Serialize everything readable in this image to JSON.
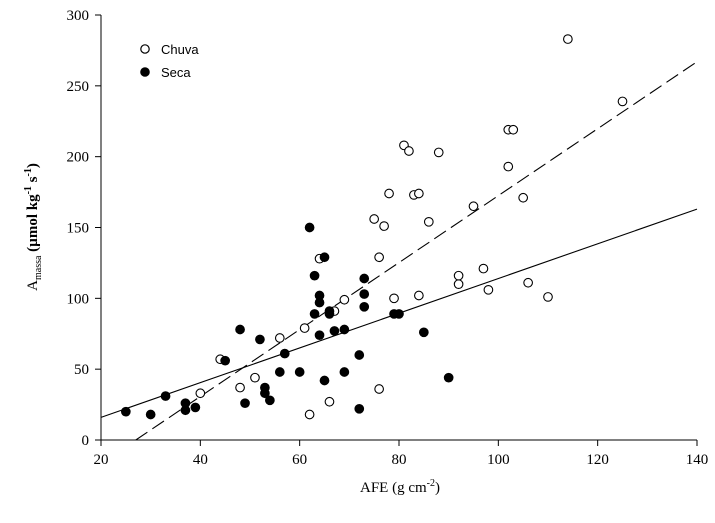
{
  "chart_data": {
    "type": "scatter",
    "xlabel_text": "AFE (g cm",
    "xlabel_sup": "-2",
    "xlabel_end": ")",
    "ylabel_main": "A",
    "ylabel_sub": "massa",
    "ylabel_rest": " (µmol kg",
    "ylabel_sup1": "-1",
    "ylabel_mid": " s",
    "ylabel_sup2": "-1",
    "ylabel_end": ")",
    "xlim": [
      20,
      140
    ],
    "ylim": [
      0,
      300
    ],
    "xticks": [
      "20",
      "40",
      "60",
      "80",
      "100",
      "120",
      "140"
    ],
    "yticks": [
      "0",
      "50",
      "100",
      "150",
      "200",
      "250",
      "300"
    ],
    "legend_position": "top-left",
    "series": [
      {
        "name": "Chuva",
        "marker": "open-circle",
        "color": "#000000",
        "fit_line": {
          "style": "dashed",
          "x": [
            27,
            140
          ],
          "y": [
            0,
            267
          ]
        },
        "points": [
          [
            40,
            33
          ],
          [
            44,
            57
          ],
          [
            48,
            37
          ],
          [
            51,
            44
          ],
          [
            56,
            72
          ],
          [
            61,
            79
          ],
          [
            62,
            18
          ],
          [
            64,
            128
          ],
          [
            66,
            27
          ],
          [
            67,
            91
          ],
          [
            69,
            99
          ],
          [
            75,
            156
          ],
          [
            76,
            36
          ],
          [
            76,
            129
          ],
          [
            77,
            151
          ],
          [
            78,
            174
          ],
          [
            79,
            100
          ],
          [
            81,
            208
          ],
          [
            82,
            204
          ],
          [
            83,
            173
          ],
          [
            84,
            174
          ],
          [
            84,
            102
          ],
          [
            86,
            154
          ],
          [
            88,
            203
          ],
          [
            92,
            110
          ],
          [
            92,
            116
          ],
          [
            95,
            165
          ],
          [
            97,
            121
          ],
          [
            98,
            106
          ],
          [
            102,
            219
          ],
          [
            102,
            193
          ],
          [
            103,
            219
          ],
          [
            105,
            171
          ],
          [
            106,
            111
          ],
          [
            110,
            101
          ],
          [
            114,
            283
          ],
          [
            125,
            239
          ]
        ]
      },
      {
        "name": "Seca",
        "marker": "filled-circle",
        "color": "#000000",
        "fit_line": {
          "style": "solid",
          "x": [
            20,
            140
          ],
          "y": [
            16,
            163
          ]
        },
        "points": [
          [
            25,
            20
          ],
          [
            30,
            18
          ],
          [
            33,
            31
          ],
          [
            37,
            21
          ],
          [
            37,
            26
          ],
          [
            39,
            23
          ],
          [
            45,
            56
          ],
          [
            48,
            78
          ],
          [
            49,
            26
          ],
          [
            52,
            71
          ],
          [
            53,
            33
          ],
          [
            53,
            37
          ],
          [
            54,
            28
          ],
          [
            56,
            48
          ],
          [
            57,
            61
          ],
          [
            60,
            48
          ],
          [
            62,
            150
          ],
          [
            63,
            116
          ],
          [
            63,
            89
          ],
          [
            64,
            102
          ],
          [
            64,
            97
          ],
          [
            64,
            74
          ],
          [
            65,
            129
          ],
          [
            65,
            42
          ],
          [
            66,
            91
          ],
          [
            66,
            89
          ],
          [
            67,
            77
          ],
          [
            69,
            78
          ],
          [
            69,
            48
          ],
          [
            72,
            22
          ],
          [
            72,
            60
          ],
          [
            73,
            103
          ],
          [
            73,
            114
          ],
          [
            73,
            94
          ],
          [
            79,
            89
          ],
          [
            80,
            89
          ],
          [
            85,
            76
          ],
          [
            90,
            44
          ]
        ]
      }
    ]
  }
}
